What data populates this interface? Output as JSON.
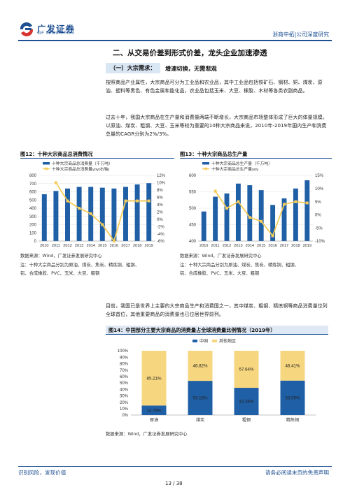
{
  "header": {
    "brand_cn": "广发证券",
    "brand_en": "GF SECURITIES",
    "report_type": "浙商中拓|公司深度研究"
  },
  "section_title": "二、从交易价差到形式价差，龙头企业加速渗透",
  "sub_section": {
    "tag": "（一）大宗需求：",
    "heading": "增速切换，无需悲观"
  },
  "paragraphs": {
    "p1": "按照商品产业属性，大宗商品可分为工业品和农业品，其中工业品包括铁矿石、钢材、铜、煤炭、原油、塑料等黑色、有色金属和能化品，农业品包括玉米、大豆、橡胶、木材等各类农副商品。",
    "p2": "过去十年，我国大宗商品在生产量和消费量两端不断增长，大宗商品市场整体形成了巨大的体量规模。以原油、煤炭、粗钢、大豆、玉米等较为重要的10种大宗商品来说，2010年-2019年国内生产和消费总量的CAGR分别为2%/3%。",
    "p3": "目前，我国已是世界上主要的大宗商品生产和消费国之一，其中煤炭、粗钢、精炼铜等商品消费量位列全球首位，其他重要商品的消费量也已位居世界前列。"
  },
  "colors": {
    "brand_blue": "#1d4f91",
    "bar_blue": "#1f5fa6",
    "line_yellow": "#f4cc5a",
    "stack_yellow": "#f6d67f"
  },
  "figures": {
    "fig12": {
      "title": "图12：十种大宗商品总消费情况",
      "source": "数据来源：Wind，广发证券发展研究中心",
      "note_lines": [
        "注：十种大宗商品分别为原油、煤炭、焦炭、精炼铜、粗钢、",
        "铝、合成橡胶、PVC、玉米、大豆、粗钢"
      ]
    },
    "fig13": {
      "title": "图13：十种大宗商品总生产量",
      "source": "数据来源：Wind，广发证券发展研究中心",
      "note_lines": [
        "注：十种大宗商品分别为原油、煤炭、焦炭、精炼铜、粗钢、",
        "铝、合成橡胶、PVC、玉米、大豆、粗钢"
      ]
    },
    "fig14": {
      "title": "图14：中国部分主要大宗商品的消费量占全球消费量比例情况（2019年）",
      "source": "数据来源：Wind，广发证券发展研究中心"
    }
  },
  "chart_data": [
    {
      "type": "bar",
      "id": "fig12",
      "categories": [
        "2010",
        "2011",
        "2012",
        "2013",
        "2014",
        "2015",
        "2016",
        "2017",
        "2018",
        "2019"
      ],
      "series": [
        {
          "name": "十种大宗商品总消费量（千万吨）",
          "kind": "bar",
          "axis": "left",
          "values": [
            570,
            610,
            640,
            660,
            660,
            650,
            640,
            660,
            690,
            705
          ]
        },
        {
          "name": "十种大宗商品总消费量yoy(右轴)",
          "kind": "line",
          "axis": "right",
          "values": [
            null,
            10,
            5,
            3,
            1.5,
            -1.5,
            -6,
            5,
            5,
            5
          ]
        }
      ],
      "yleft": {
        "min": 0,
        "max": 800,
        "ticks": [
          0,
          100,
          200,
          300,
          400,
          500,
          600,
          700,
          800
        ]
      },
      "yright": {
        "min": -6,
        "max": 12,
        "ticks": [
          "-6%",
          "-4%",
          "-2%",
          "0%",
          "2%",
          "4%",
          "6%",
          "8%",
          "10%",
          "12%"
        ]
      },
      "grid": true,
      "legend": "top-left"
    },
    {
      "type": "bar",
      "id": "fig13",
      "categories": [
        "2010",
        "2011",
        "2012",
        "2013",
        "2014",
        "2015",
        "2016",
        "2017",
        "2018",
        "2019"
      ],
      "series": [
        {
          "name": "十种大宗商品总生产量（千万吨）",
          "kind": "bar",
          "axis": "left",
          "values": [
            490,
            535,
            545,
            575,
            570,
            555,
            510,
            530,
            560,
            585
          ]
        },
        {
          "name": "十种大宗商品总生产量yoy",
          "kind": "line",
          "axis": "right",
          "values": [
            null,
            9,
            2.5,
            5,
            -1,
            -2.5,
            -8,
            4,
            5,
            4.5
          ]
        }
      ],
      "yleft": {
        "min": 400,
        "max": 600,
        "ticks": [
          400,
          450,
          500,
          550,
          600
        ]
      },
      "yright": {
        "min": -10,
        "max": 15,
        "ticks": [
          "-10%",
          "-5%",
          "0%",
          "5%",
          "10%",
          "15%"
        ]
      },
      "grid": true,
      "legend": "top-left"
    },
    {
      "type": "bar",
      "id": "fig14",
      "stacked": true,
      "categories": [
        "原油",
        "煤炭",
        "粗钢",
        "精炼铜"
      ],
      "series": [
        {
          "name": "中国",
          "values": [
            14.79,
            53.18,
            42.36,
            53.59
          ],
          "labels": [
            "14.79%",
            "53.18%",
            "42.36%",
            "53.59%"
          ]
        },
        {
          "name": "其他地区",
          "values": [
            85.21,
            46.82,
            57.64,
            46.41
          ],
          "labels": [
            "85.21%",
            "46.82%",
            "57.64%",
            "46.41%"
          ]
        }
      ],
      "yaxis": {
        "min": 0,
        "max": 100,
        "ticks": [
          "0%",
          "10%",
          "20%",
          "30%",
          "40%",
          "50%",
          "60%",
          "70%",
          "80%",
          "90%",
          "100%"
        ]
      },
      "grid": false,
      "legend": "top-center"
    }
  ],
  "footer": {
    "left": "识别风险，发现价值",
    "right": "请务必阅读末页的免责声明",
    "page": "13 / 38"
  }
}
